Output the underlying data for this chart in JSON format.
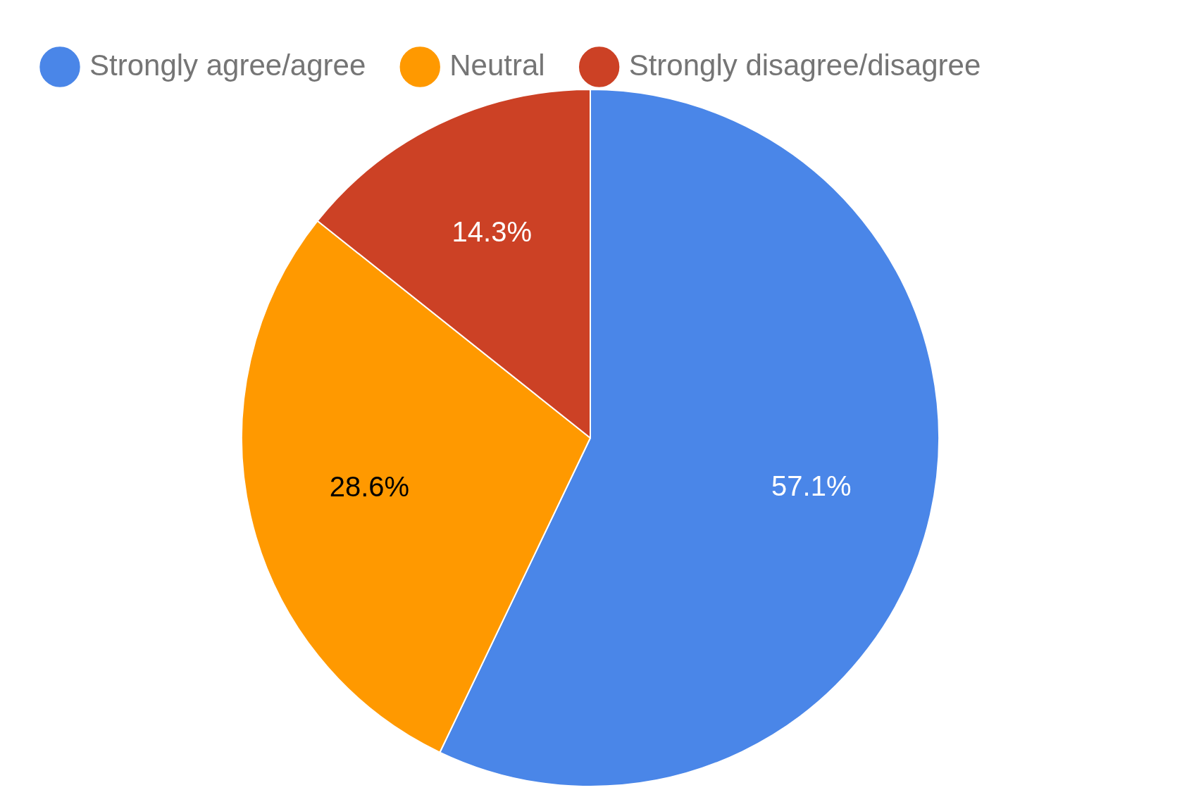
{
  "chart_data": {
    "type": "pie",
    "categories": [
      "Strongly agree/agree",
      "Neutral",
      "Strongly disagree/disagree"
    ],
    "values": [
      57.1,
      28.6,
      14.3
    ],
    "colors": [
      "#4a86e8",
      "#ff9900",
      "#cc4125"
    ],
    "value_labels": [
      "57.1%",
      "28.6%",
      "14.3%"
    ],
    "legend": "top"
  }
}
